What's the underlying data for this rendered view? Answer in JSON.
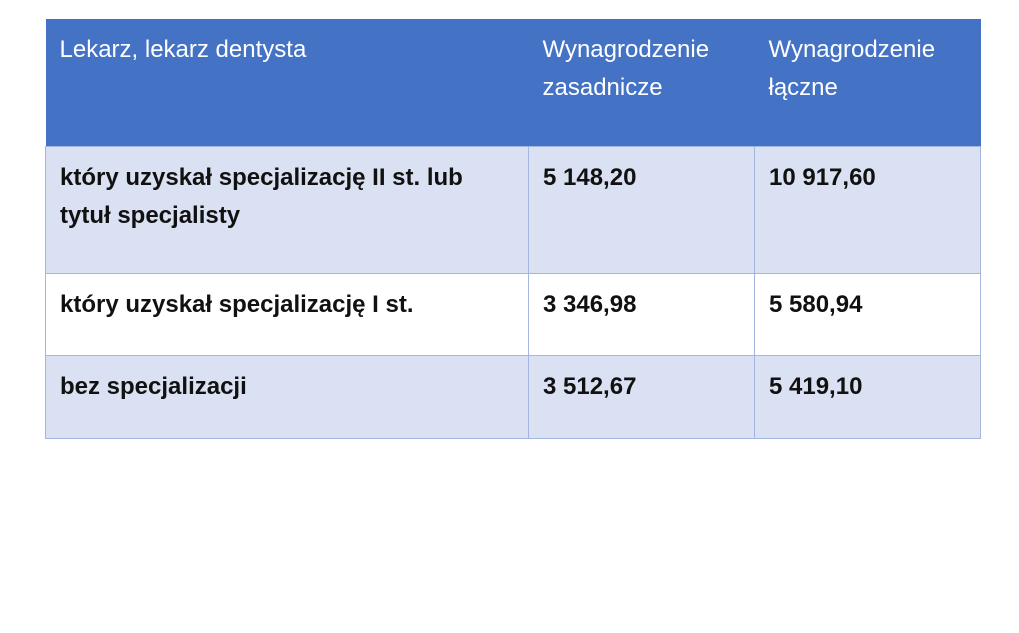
{
  "header": {
    "col1": "Lekarz, lekarz dentysta",
    "col2": "Wynagrodzenie zasadnicze",
    "col3": "Wynagrodzenie łączne"
  },
  "rows": [
    {
      "label": "który uzyskał specjalizację II st. lub tytuł specjalisty",
      "base": "5 148,20",
      "total": "10 917,60"
    },
    {
      "label": "który uzyskał specjalizację I st.",
      "base": "3 346,98",
      "total": "5 580,94"
    },
    {
      "label": "bez specjalizacji",
      "base": "3 512,67",
      "total": "5 419,10"
    }
  ],
  "colors": {
    "header_bg": "#4472c4",
    "band_bg": "#d9e1f2",
    "border": "#a4b6df"
  }
}
